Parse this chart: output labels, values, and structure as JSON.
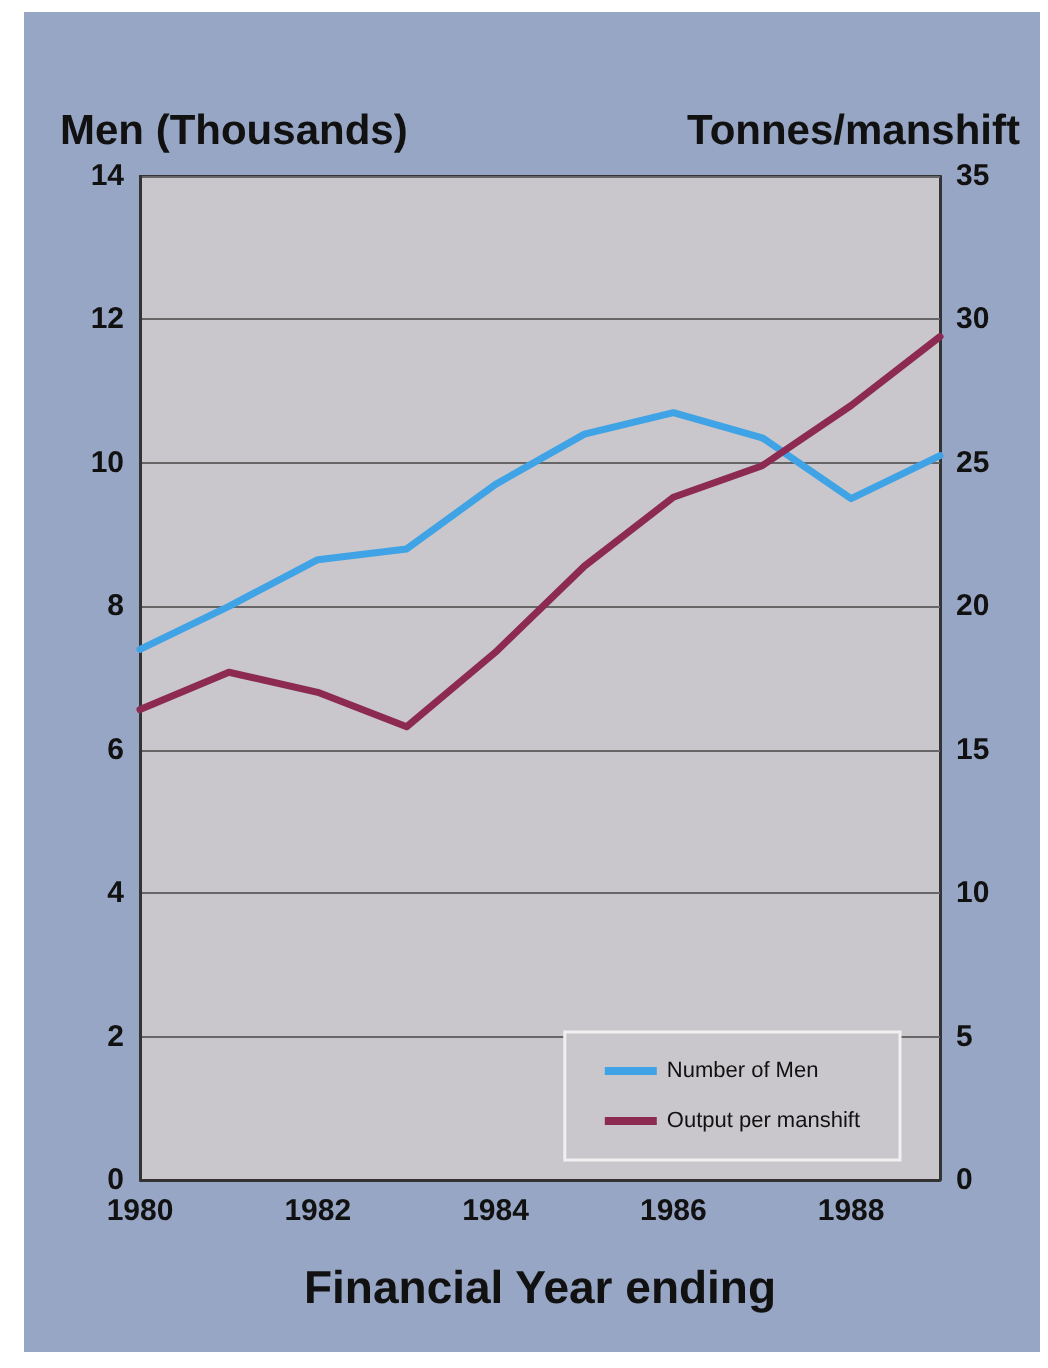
{
  "chart_data": {
    "type": "line",
    "ylabel": "Men (Thousands)",
    "y2label": "Tonnes/manshift",
    "xlabel": "Financial Year ending",
    "x": [
      1980,
      1981,
      1982,
      1983,
      1984,
      1985,
      1986,
      1987,
      1988,
      1989
    ],
    "series": [
      {
        "name": "Number of Men",
        "color": "#3fa3e6",
        "values": [
          7.4,
          8.0,
          8.65,
          8.8,
          9.7,
          10.4,
          10.7,
          10.35,
          9.5,
          10.1
        ]
      },
      {
        "name": "Output per manshift",
        "color": "#8c2a52",
        "axis": "y2",
        "values": [
          16.4,
          17.7,
          17.0,
          15.8,
          18.4,
          21.4,
          23.8,
          24.9,
          27.0,
          29.4
        ]
      }
    ],
    "xlim": [
      1980,
      1989
    ],
    "xticks": [
      1980,
      1982,
      1984,
      1986,
      1988
    ],
    "ylim": [
      0,
      14
    ],
    "yticks": [
      0,
      2,
      4,
      6,
      8,
      10,
      12,
      14
    ],
    "y2lim": [
      0,
      35
    ],
    "y2ticks": [
      0,
      5,
      10,
      15,
      20,
      25,
      30,
      35
    ],
    "grid": "y",
    "legend": "bottom right",
    "marker": "none",
    "line_style": "solid"
  }
}
